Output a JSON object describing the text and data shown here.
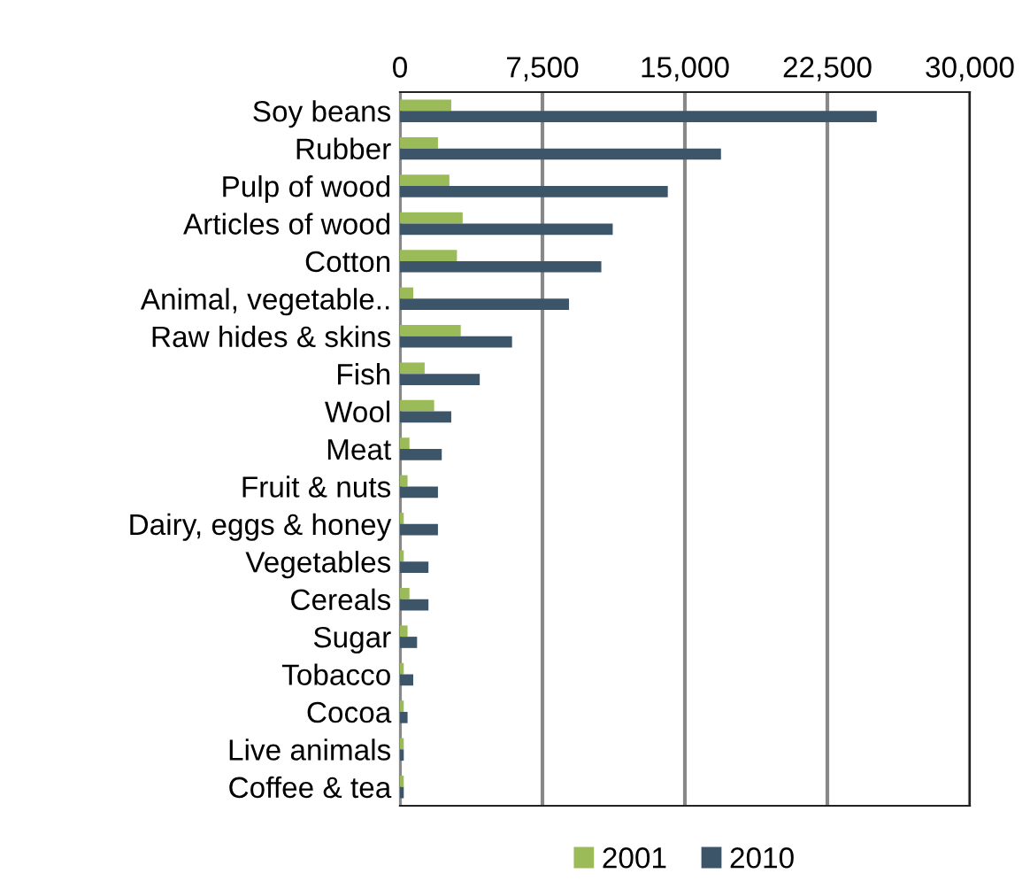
{
  "chart_data": {
    "type": "bar",
    "orientation": "horizontal",
    "categories": [
      "Soy beans",
      "Rubber",
      "Pulp of wood",
      "Articles of wood",
      "Cotton",
      "Animal, vegetable..",
      "Raw hides & skins",
      "Fish",
      "Wool",
      "Meat",
      "Fruit & nuts",
      "Dairy, eggs & honey",
      "Vegetables",
      "Cereals",
      "Sugar",
      "Tobacco",
      "Cocoa",
      "Live animals",
      "Coffee & tea"
    ],
    "series": [
      {
        "name": "2001",
        "color": "#9bbb59",
        "values": [
          2700,
          2000,
          2600,
          3300,
          3000,
          700,
          3200,
          1300,
          1800,
          500,
          400,
          200,
          200,
          500,
          400,
          200,
          200,
          200,
          200
        ]
      },
      {
        "name": "2010",
        "color": "#3d5568",
        "values": [
          25100,
          16900,
          14100,
          11200,
          10600,
          8900,
          5900,
          4200,
          2700,
          2200,
          2000,
          2000,
          1500,
          1500,
          900,
          700,
          400,
          200,
          200
        ]
      }
    ],
    "xlim": [
      0,
      30000
    ],
    "xticks": [
      {
        "value": 0,
        "label": "0"
      },
      {
        "value": 7500,
        "label": "7,500"
      },
      {
        "value": 15000,
        "label": "15,000"
      },
      {
        "value": 22500,
        "label": "22,500"
      },
      {
        "value": 30000,
        "label": "30,000"
      }
    ],
    "grid": "x",
    "legend": "bottom"
  }
}
